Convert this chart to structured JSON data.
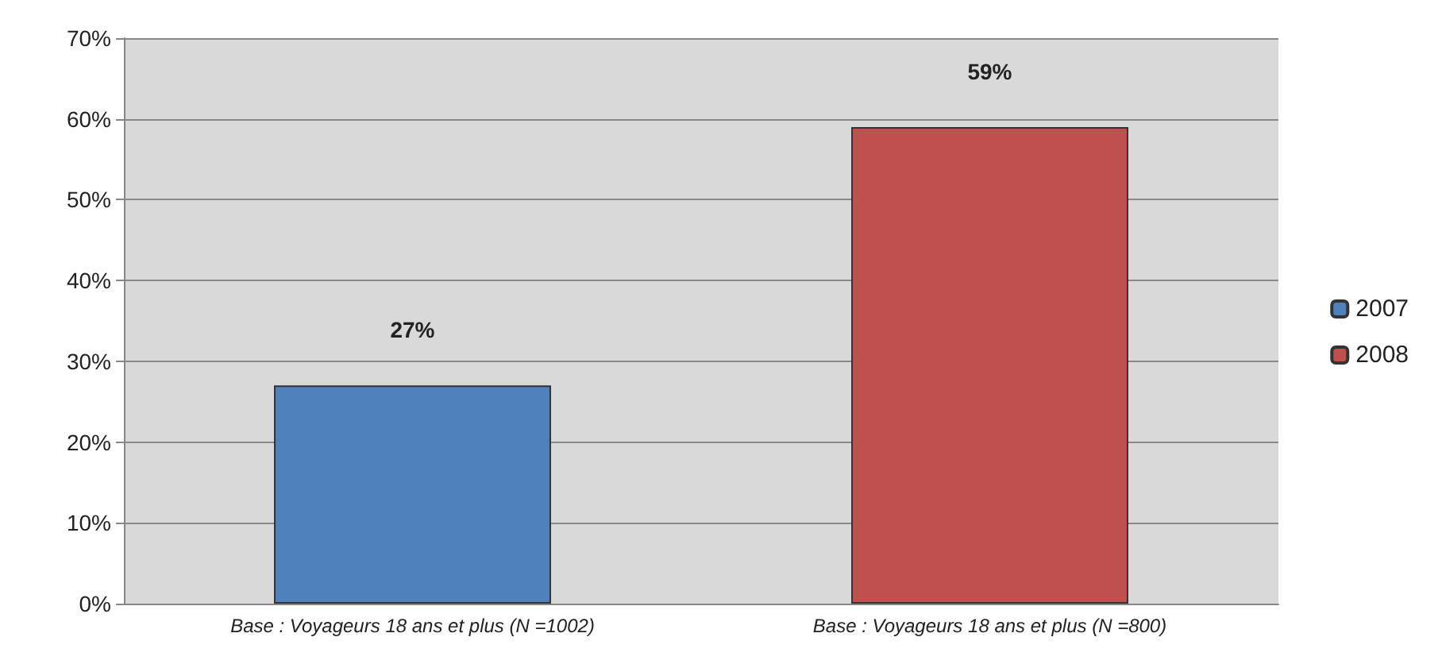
{
  "chart_data": {
    "type": "bar",
    "categories": [
      "Base : Voyageurs 18 ans et plus (N =1002)",
      "Base : Voyageurs 18 ans et plus (N =800)"
    ],
    "series": [
      {
        "name": "2007",
        "color": "#4f81bd",
        "values": [
          27,
          null
        ],
        "value_labels": [
          "27%",
          null
        ]
      },
      {
        "name": "2008",
        "color": "#c0504d",
        "values": [
          null,
          59
        ],
        "value_labels": [
          null,
          "59%"
        ]
      }
    ],
    "ylim": [
      0,
      70
    ],
    "yticks": [
      {
        "value": 0,
        "label": "0%"
      },
      {
        "value": 10,
        "label": "10%"
      },
      {
        "value": 20,
        "label": "20%"
      },
      {
        "value": 30,
        "label": "30%"
      },
      {
        "value": 40,
        "label": "40%"
      },
      {
        "value": 50,
        "label": "50%"
      },
      {
        "value": 60,
        "label": "60%"
      },
      {
        "value": 70,
        "label": "70%"
      }
    ],
    "grid": "y",
    "legend": "right"
  }
}
